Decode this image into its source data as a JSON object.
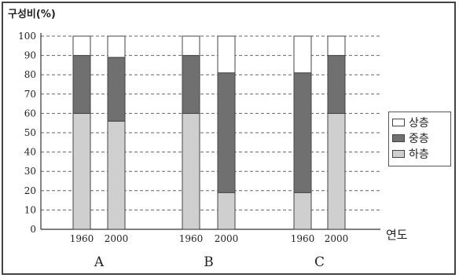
{
  "chart_data": {
    "type": "bar",
    "stacked": true,
    "ylabel": "구성비(%)",
    "xlabel": "연도",
    "ylim": [
      0,
      100
    ],
    "yticks": [
      0,
      10,
      20,
      30,
      40,
      50,
      60,
      70,
      80,
      90,
      100
    ],
    "groups": [
      {
        "name": "A",
        "years": [
          "1960",
          "2000"
        ]
      },
      {
        "name": "B",
        "years": [
          "1960",
          "2000"
        ]
      },
      {
        "name": "C",
        "years": [
          "1960",
          "2000"
        ]
      }
    ],
    "categories": [
      "A 1960",
      "A 2000",
      "B 1960",
      "B 2000",
      "C 1960",
      "C 2000"
    ],
    "series": [
      {
        "name": "하층",
        "values": [
          60,
          56,
          60,
          19,
          19,
          60
        ]
      },
      {
        "name": "중층",
        "values": [
          30,
          33,
          30,
          62,
          62,
          30
        ]
      },
      {
        "name": "상층",
        "values": [
          10,
          11,
          10,
          19,
          19,
          10
        ]
      }
    ],
    "colors": {
      "상층": "#ffffff",
      "중층": "#707070",
      "하층": "#cfcfcf"
    },
    "grid": true,
    "legend_position": "right"
  }
}
